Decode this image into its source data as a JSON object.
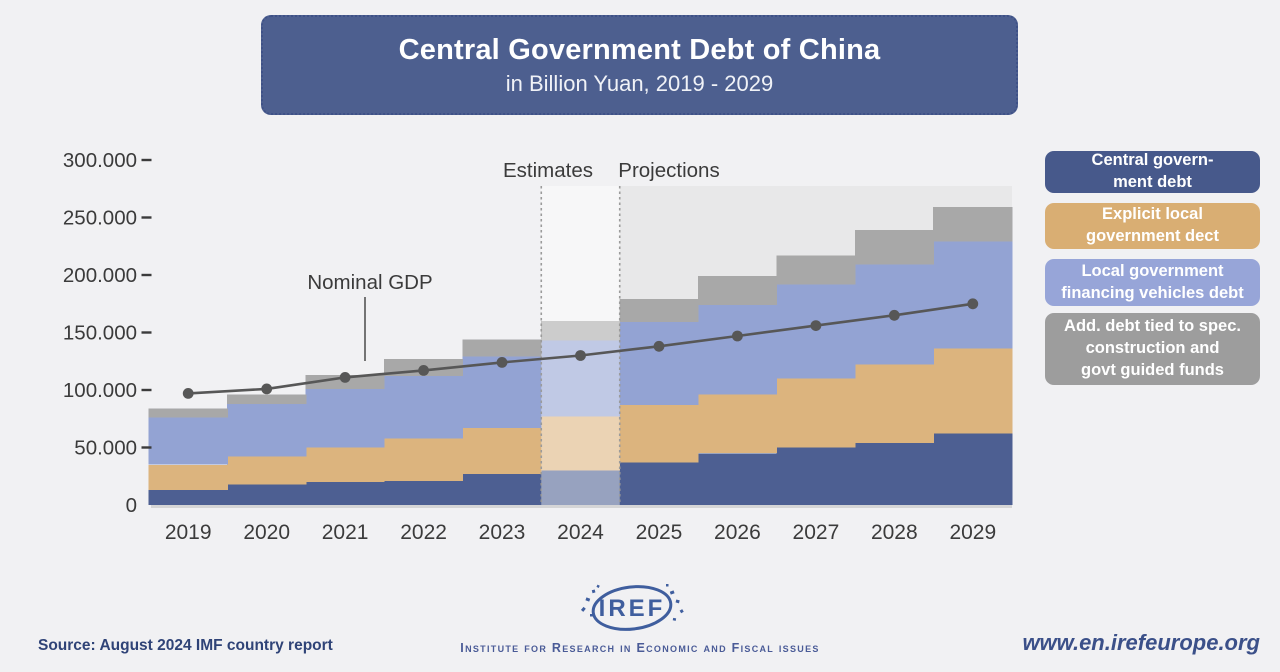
{
  "title": {
    "main": "Central Government Debt of China",
    "subtitle": "in Billion Yuan, 2019 - 2029",
    "box_color": "#4d5f8f"
  },
  "chart_data": {
    "type": "area",
    "stacked": true,
    "step": true,
    "title": "Central Government Debt of China",
    "unit": "Billion Yuan",
    "categories": [
      "2019",
      "2020",
      "2021",
      "2022",
      "2023",
      "2024",
      "2025",
      "2026",
      "2027",
      "2028",
      "2029"
    ],
    "series": [
      {
        "name": "Central government debt",
        "color": "#4d5f92",
        "values": [
          13000,
          18000,
          20000,
          21000,
          27000,
          30000,
          37000,
          45000,
          50000,
          54000,
          62000
        ]
      },
      {
        "name": "Explicit local government dect",
        "color": "#dcb47e",
        "values": [
          22000,
          24000,
          30000,
          37000,
          40000,
          47000,
          50000,
          51000,
          60000,
          68000,
          74000
        ]
      },
      {
        "name": "Local government financing vehicles debt",
        "color": "#93a3d3",
        "values": [
          41000,
          46000,
          51000,
          54000,
          62000,
          66000,
          72000,
          78000,
          82000,
          87000,
          93000
        ]
      },
      {
        "name": "Add. debt tied to spec. construction and govt guided funds",
        "color": "#a8a8a8",
        "values": [
          8000,
          8000,
          12000,
          15000,
          15000,
          17000,
          20000,
          25000,
          25000,
          30000,
          30000
        ]
      }
    ],
    "line_series": {
      "name": "Nominal GDP",
      "color": "#575757",
      "values": [
        97000,
        101000,
        111000,
        117000,
        124000,
        130000,
        138000,
        147000,
        156000,
        165000,
        175000
      ]
    },
    "ylim": [
      0,
      300000
    ],
    "y_ticks": [
      {
        "value": 0,
        "label": "0"
      },
      {
        "value": 50000,
        "label": "50.000"
      },
      {
        "value": 100000,
        "label": "100.000"
      },
      {
        "value": 150000,
        "label": "150.000"
      },
      {
        "value": 200000,
        "label": "200.000"
      },
      {
        "value": 250000,
        "label": "250.000"
      },
      {
        "value": 300000,
        "label": "300.000"
      }
    ],
    "grid": false,
    "legend_position": "right",
    "annotations": {
      "estimates_label": "Estimates",
      "projections_label": "Projections",
      "line_label": "Nominal GDP"
    },
    "highlight_category": "2024",
    "plot_bg_right": "#e8e8e9",
    "axis_text_color": "#3b3b3b"
  },
  "legend": {
    "items": [
      {
        "label": "Central govern-\nment debt",
        "color": "#47598b"
      },
      {
        "label": "Explicit local\ngovernment dect",
        "color": "#d9ae73"
      },
      {
        "label": "Local government\nfinancing vehicles debt",
        "color": "#97a5d8"
      },
      {
        "label": "Add. debt tied to spec.\nconstruction and\ngovt guided funds",
        "color": "#9d9d9d"
      }
    ]
  },
  "footer": {
    "source": "Source: August 2024 IMF country report",
    "website": "www.en.irefeurope.org",
    "logo_text": "IREF",
    "logo_caption": "Institute for Research in Economic and Fiscal issues",
    "logo_color": "#3f5e9e"
  }
}
